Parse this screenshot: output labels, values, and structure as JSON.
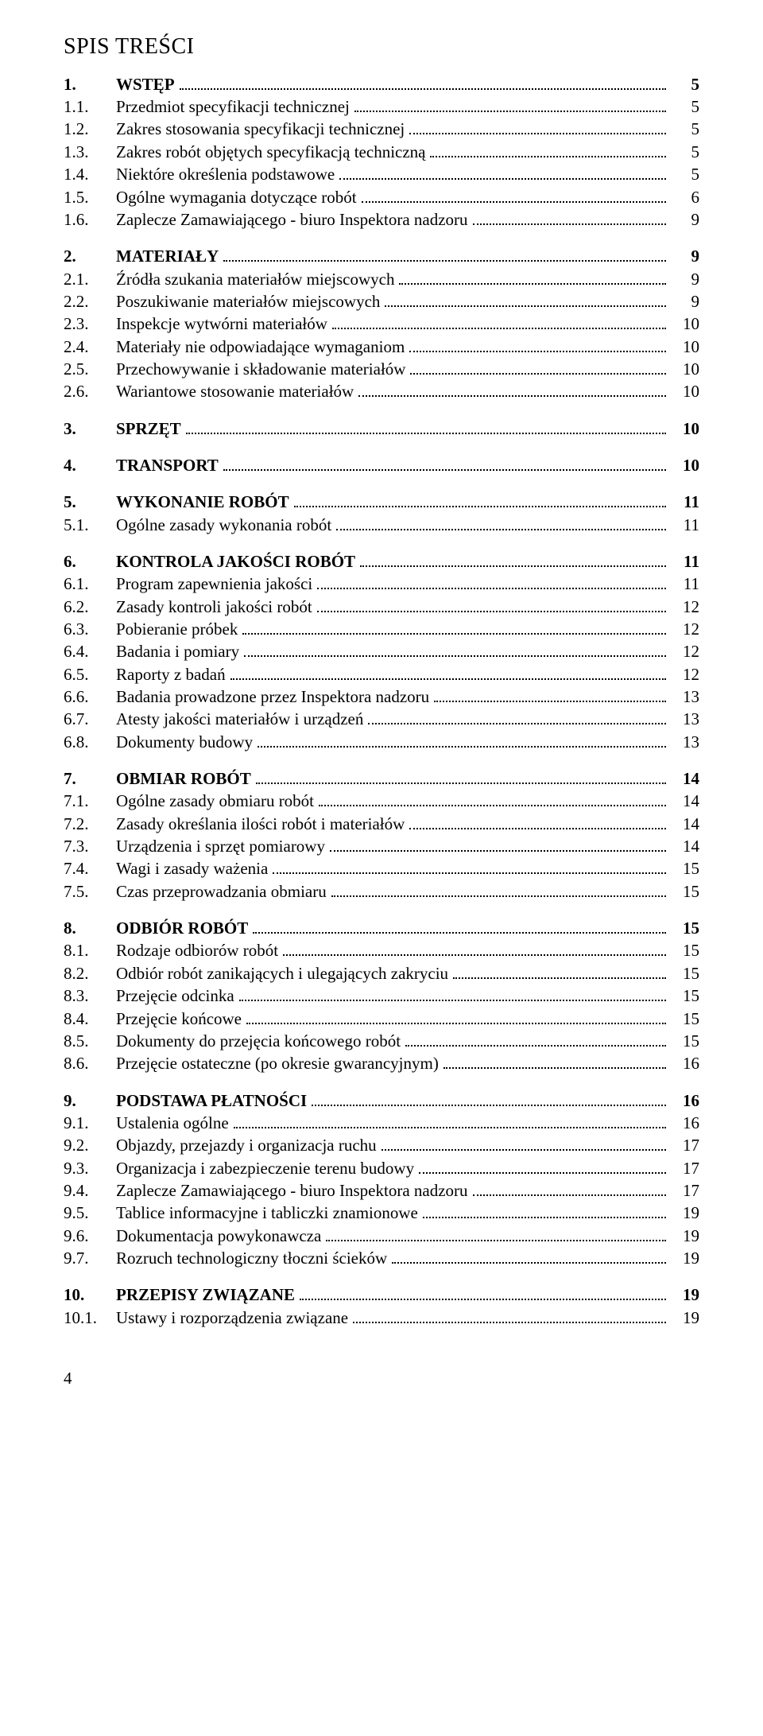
{
  "title": "SPIS TREŚCI",
  "footer": "4",
  "entries": [
    {
      "num": "1.",
      "label": "WSTĘP",
      "page": "5",
      "bold": true,
      "group_start": false
    },
    {
      "num": "1.1.",
      "label": "Przedmiot specyfikacji technicznej",
      "page": "5",
      "bold": false,
      "group_start": false
    },
    {
      "num": "1.2.",
      "label": "Zakres stosowania specyfikacji technicznej",
      "page": "5",
      "bold": false,
      "group_start": false
    },
    {
      "num": "1.3.",
      "label": "Zakres robót objętych specyfikacją techniczną",
      "page": "5",
      "bold": false,
      "group_start": false
    },
    {
      "num": "1.4.",
      "label": "Niektóre określenia podstawowe",
      "page": "5",
      "bold": false,
      "group_start": false
    },
    {
      "num": "1.5.",
      "label": "Ogólne wymagania dotyczące robót",
      "page": "6",
      "bold": false,
      "group_start": false
    },
    {
      "num": "1.6.",
      "label": "Zaplecze Zamawiającego - biuro Inspektora nadzoru",
      "page": "9",
      "bold": false,
      "group_start": false
    },
    {
      "num": "2.",
      "label": "MATERIAŁY",
      "page": "9",
      "bold": true,
      "group_start": true
    },
    {
      "num": "2.1.",
      "label": "Źródła szukania materiałów miejscowych",
      "page": "9",
      "bold": false,
      "group_start": false
    },
    {
      "num": "2.2.",
      "label": "Poszukiwanie materiałów miejscowych",
      "page": "9",
      "bold": false,
      "group_start": false
    },
    {
      "num": "2.3.",
      "label": "Inspekcje wytwórni materiałów",
      "page": "10",
      "bold": false,
      "group_start": false
    },
    {
      "num": "2.4.",
      "label": "Materiały nie odpowiadające wymaganiom",
      "page": "10",
      "bold": false,
      "group_start": false
    },
    {
      "num": "2.5.",
      "label": "Przechowywanie i składowanie materiałów",
      "page": "10",
      "bold": false,
      "group_start": false
    },
    {
      "num": "2.6.",
      "label": "Wariantowe stosowanie materiałów",
      "page": "10",
      "bold": false,
      "group_start": false
    },
    {
      "num": "3.",
      "label": "SPRZĘT",
      "page": "10",
      "bold": true,
      "group_start": true
    },
    {
      "num": "4.",
      "label": "TRANSPORT",
      "page": "10",
      "bold": true,
      "group_start": true
    },
    {
      "num": "5.",
      "label": "WYKONANIE ROBÓT",
      "page": "11",
      "bold": true,
      "group_start": true
    },
    {
      "num": "5.1.",
      "label": "Ogólne zasady wykonania robót",
      "page": "11",
      "bold": false,
      "group_start": false
    },
    {
      "num": "6.",
      "label": "KONTROLA JAKOŚCI ROBÓT",
      "page": "11",
      "bold": true,
      "group_start": true
    },
    {
      "num": "6.1.",
      "label": "Program zapewnienia jakości",
      "page": "11",
      "bold": false,
      "group_start": false
    },
    {
      "num": "6.2.",
      "label": "Zasady kontroli jakości robót",
      "page": "12",
      "bold": false,
      "group_start": false
    },
    {
      "num": "6.3.",
      "label": "Pobieranie próbek",
      "page": "12",
      "bold": false,
      "group_start": false
    },
    {
      "num": "6.4.",
      "label": "Badania i pomiary",
      "page": "12",
      "bold": false,
      "group_start": false
    },
    {
      "num": "6.5.",
      "label": "Raporty z badań",
      "page": "12",
      "bold": false,
      "group_start": false
    },
    {
      "num": "6.6.",
      "label": "Badania prowadzone przez Inspektora nadzoru",
      "page": "13",
      "bold": false,
      "group_start": false
    },
    {
      "num": "6.7.",
      "label": "Atesty jakości materiałów i urządzeń",
      "page": "13",
      "bold": false,
      "group_start": false
    },
    {
      "num": "6.8.",
      "label": "Dokumenty budowy",
      "page": "13",
      "bold": false,
      "group_start": false
    },
    {
      "num": "7.",
      "label": "OBMIAR ROBÓT",
      "page": "14",
      "bold": true,
      "group_start": true
    },
    {
      "num": "7.1.",
      "label": "Ogólne zasady obmiaru robót",
      "page": "14",
      "bold": false,
      "group_start": false
    },
    {
      "num": "7.2.",
      "label": "Zasady określania ilości robót i materiałów",
      "page": "14",
      "bold": false,
      "group_start": false
    },
    {
      "num": "7.3.",
      "label": "Urządzenia i sprzęt pomiarowy",
      "page": "14",
      "bold": false,
      "group_start": false
    },
    {
      "num": "7.4.",
      "label": "Wagi i zasady ważenia",
      "page": "15",
      "bold": false,
      "group_start": false
    },
    {
      "num": "7.5.",
      "label": "Czas przeprowadzania obmiaru",
      "page": "15",
      "bold": false,
      "group_start": false
    },
    {
      "num": "8.",
      "label": "ODBIÓR ROBÓT",
      "page": "15",
      "bold": true,
      "group_start": true
    },
    {
      "num": "8.1.",
      "label": "Rodzaje odbiorów robót",
      "page": "15",
      "bold": false,
      "group_start": false
    },
    {
      "num": "8.2.",
      "label": "Odbiór robót zanikających i ulegających zakryciu",
      "page": "15",
      "bold": false,
      "group_start": false
    },
    {
      "num": "8.3.",
      "label": "Przejęcie odcinka",
      "page": "15",
      "bold": false,
      "group_start": false
    },
    {
      "num": "8.4.",
      "label": "Przejęcie końcowe",
      "page": "15",
      "bold": false,
      "group_start": false
    },
    {
      "num": "8.5.",
      "label": "Dokumenty do przejęcia końcowego robót",
      "page": "15",
      "bold": false,
      "group_start": false
    },
    {
      "num": "8.6.",
      "label": "Przejęcie ostateczne (po okresie gwarancyjnym)",
      "page": "16",
      "bold": false,
      "group_start": false
    },
    {
      "num": "9.",
      "label": "PODSTAWA PŁATNOŚCI",
      "page": "16",
      "bold": true,
      "group_start": true
    },
    {
      "num": "9.1.",
      "label": "Ustalenia ogólne",
      "page": "16",
      "bold": false,
      "group_start": false
    },
    {
      "num": "9.2.",
      "label": "Objazdy, przejazdy i organizacja ruchu",
      "page": "17",
      "bold": false,
      "group_start": false
    },
    {
      "num": "9.3.",
      "label": "Organizacja i zabezpieczenie terenu budowy",
      "page": "17",
      "bold": false,
      "group_start": false
    },
    {
      "num": "9.4.",
      "label": "Zaplecze Zamawiającego - biuro Inspektora nadzoru",
      "page": "17",
      "bold": false,
      "group_start": false
    },
    {
      "num": "9.5.",
      "label": "Tablice informacyjne i tabliczki znamionowe",
      "page": "19",
      "bold": false,
      "group_start": false
    },
    {
      "num": "9.6.",
      "label": "Dokumentacja powykonawcza",
      "page": "19",
      "bold": false,
      "group_start": false
    },
    {
      "num": "9.7.",
      "label": "Rozruch technologiczny tłoczni ścieków",
      "page": "19",
      "bold": false,
      "group_start": false
    },
    {
      "num": "10.",
      "label": "PRZEPISY ZWIĄZANE",
      "page": "19",
      "bold": true,
      "group_start": true
    },
    {
      "num": "10.1.",
      "label": "Ustawy i rozporządzenia związane",
      "page": "19",
      "bold": false,
      "group_start": false
    }
  ]
}
